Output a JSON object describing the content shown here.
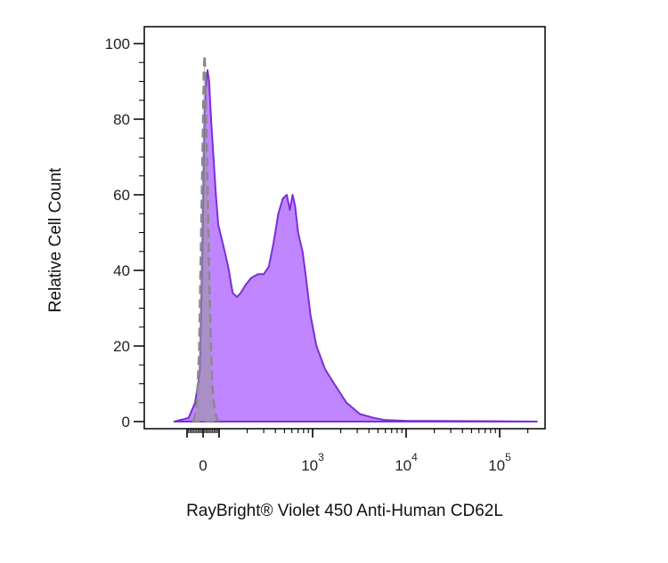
{
  "chart_data": {
    "type": "area",
    "title": "",
    "xlabel": "RayBright® Violet 450 Anti-Human CD62L",
    "ylabel": "Relative Cell Count",
    "x_scale": "biexponential",
    "ylim": [
      0,
      100
    ],
    "y_ticks": [
      0,
      20,
      40,
      60,
      80,
      100
    ],
    "x_ticks": [
      {
        "base": "0",
        "exp": ""
      },
      {
        "base": "10",
        "exp": "3"
      },
      {
        "base": "10",
        "exp": "4"
      },
      {
        "base": "10",
        "exp": "5"
      }
    ],
    "grid": false,
    "legend": "none",
    "series": [
      {
        "style": "filled-solid",
        "color": "#7a2fd6",
        "fill": "#bf86ff",
        "points": [
          [
            -180,
            0
          ],
          [
            -90,
            1
          ],
          [
            -50,
            5
          ],
          [
            -20,
            13
          ],
          [
            -5,
            42
          ],
          [
            10,
            82
          ],
          [
            20,
            90
          ],
          [
            28,
            93
          ],
          [
            38,
            90
          ],
          [
            50,
            80
          ],
          [
            65,
            70
          ],
          [
            80,
            60
          ],
          [
            95,
            52
          ],
          [
            110,
            47
          ],
          [
            125,
            41
          ],
          [
            140,
            34
          ],
          [
            155,
            33
          ],
          [
            170,
            34
          ],
          [
            190,
            36
          ],
          [
            220,
            38
          ],
          [
            260,
            39
          ],
          [
            300,
            39
          ],
          [
            340,
            41
          ],
          [
            380,
            47
          ],
          [
            430,
            55
          ],
          [
            480,
            59
          ],
          [
            530,
            60
          ],
          [
            570,
            56
          ],
          [
            610,
            60
          ],
          [
            650,
            57
          ],
          [
            700,
            50
          ],
          [
            780,
            45
          ],
          [
            850,
            38
          ],
          [
            950,
            28
          ],
          [
            1100,
            20
          ],
          [
            1350,
            14
          ],
          [
            1700,
            10
          ],
          [
            2300,
            5
          ],
          [
            3200,
            2
          ],
          [
            4500,
            1
          ],
          [
            6000,
            0.4
          ],
          [
            10000,
            0.2
          ],
          [
            100000,
            0.1
          ],
          [
            250000,
            0
          ]
        ]
      },
      {
        "style": "filled-dashed",
        "color": "#8a8a8a",
        "fill": "#999999",
        "points": [
          [
            -60,
            0
          ],
          [
            -40,
            4
          ],
          [
            -25,
            18
          ],
          [
            -10,
            55
          ],
          [
            0,
            80
          ],
          [
            5,
            94
          ],
          [
            10,
            97
          ],
          [
            15,
            90
          ],
          [
            22,
            75
          ],
          [
            30,
            58
          ],
          [
            38,
            40
          ],
          [
            46,
            25
          ],
          [
            54,
            14
          ],
          [
            62,
            7
          ],
          [
            72,
            3
          ],
          [
            85,
            1
          ],
          [
            100,
            0
          ]
        ]
      }
    ]
  }
}
